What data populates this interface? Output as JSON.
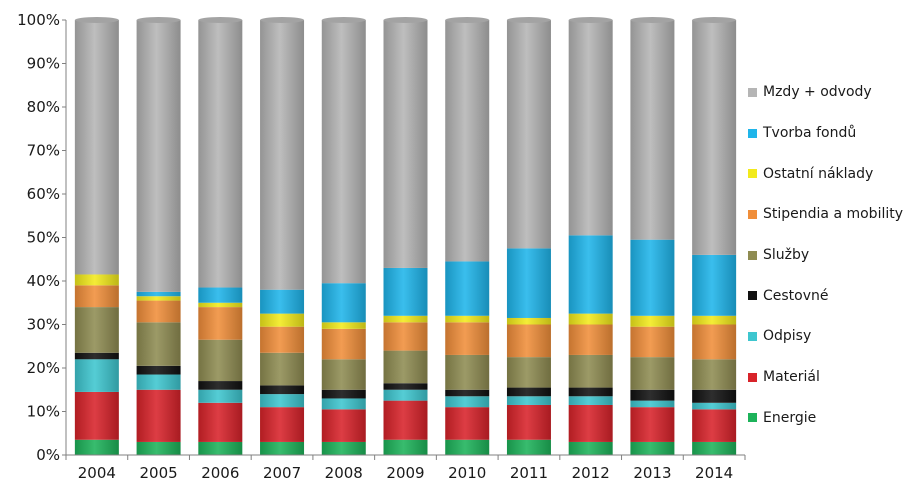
{
  "chart_data": {
    "type": "bar",
    "stacked": true,
    "percent": true,
    "categories": [
      "2004",
      "2005",
      "2006",
      "2007",
      "2008",
      "2009",
      "2010",
      "2011",
      "2012",
      "2013",
      "2014"
    ],
    "ylim": [
      0,
      100
    ],
    "yticks": [
      "0%",
      "10%",
      "20%",
      "30%",
      "40%",
      "50%",
      "60%",
      "70%",
      "80%",
      "90%",
      "100%"
    ],
    "grid": false,
    "legend_position": "right",
    "series": [
      {
        "name": "Energie",
        "color": "#1db35a",
        "values": [
          3.5,
          3,
          3,
          3,
          3,
          3.5,
          3.5,
          3.5,
          3,
          3,
          3
        ]
      },
      {
        "name": "Materiál",
        "color": "#d8232a",
        "values": [
          11,
          12,
          9,
          8,
          7.5,
          9,
          7.5,
          8,
          8.5,
          8,
          7.5
        ]
      },
      {
        "name": "Odpisy",
        "color": "#3ec6cf",
        "values": [
          7.5,
          3.5,
          3,
          3,
          2.5,
          2.5,
          2.5,
          2,
          2,
          1.5,
          1.5
        ]
      },
      {
        "name": "Cestovné",
        "color": "#111111",
        "values": [
          1.5,
          2,
          2,
          2,
          2,
          1.5,
          1.5,
          2,
          2,
          2.5,
          3
        ]
      },
      {
        "name": "Služby",
        "color": "#8f8c52",
        "values": [
          10.5,
          10,
          9.5,
          7.5,
          7,
          7.5,
          8,
          7,
          7.5,
          7.5,
          7
        ]
      },
      {
        "name": "Stipendia a mobility",
        "color": "#f08e3a",
        "values": [
          5,
          5,
          7.5,
          6,
          7,
          6.5,
          7.5,
          7.5,
          7,
          7,
          8
        ]
      },
      {
        "name": "Ostatní náklady",
        "color": "#f2ea1c",
        "values": [
          2.5,
          1,
          1,
          3,
          1.5,
          1.5,
          1.5,
          1.5,
          2.5,
          2.5,
          2
        ]
      },
      {
        "name": "Tvorba fondů",
        "color": "#1fb5ea",
        "values": [
          0,
          1,
          3.5,
          5.5,
          9,
          11,
          12.5,
          16,
          18,
          17.5,
          14
        ]
      },
      {
        "name": "Mzdy + odvody",
        "color": "#b5b5b5",
        "values": [
          58.5,
          62.5,
          61.5,
          62,
          60.5,
          57,
          55.5,
          52.5,
          49.5,
          50.5,
          54
        ]
      }
    ]
  }
}
